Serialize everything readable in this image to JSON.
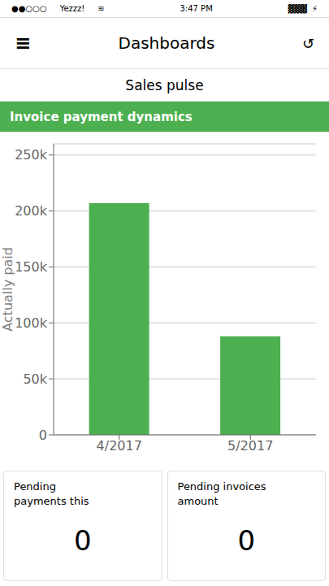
{
  "chart_data": {
    "type": "bar",
    "title": "Invoice payment dynamics",
    "categories": [
      "4/2017",
      "5/2017"
    ],
    "values": [
      207000,
      88000
    ],
    "color": "#4caf50",
    "ylabel": "Actually paid",
    "ylim": [
      0,
      260000
    ],
    "yticks": [
      0,
      {
        "value": 50000,
        "label": "50k"
      },
      {
        "value": 100000,
        "label": "100k"
      },
      {
        "value": 150000,
        "label": "150k"
      },
      {
        "value": 200000,
        "label": "200k"
      },
      {
        "value": 250000,
        "label": "250k"
      }
    ],
    "grid": true,
    "annotations": [
      "●●○○○",
      "Yezzz!",
      "≋",
      "3:47 PM",
      "▓▓▓  ⚡",
      "≡",
      "Dashboards",
      "↺",
      "Sales pulse",
      "Pending\npayments this",
      "0",
      "Pending invoices\namount",
      "0"
    ]
  }
}
